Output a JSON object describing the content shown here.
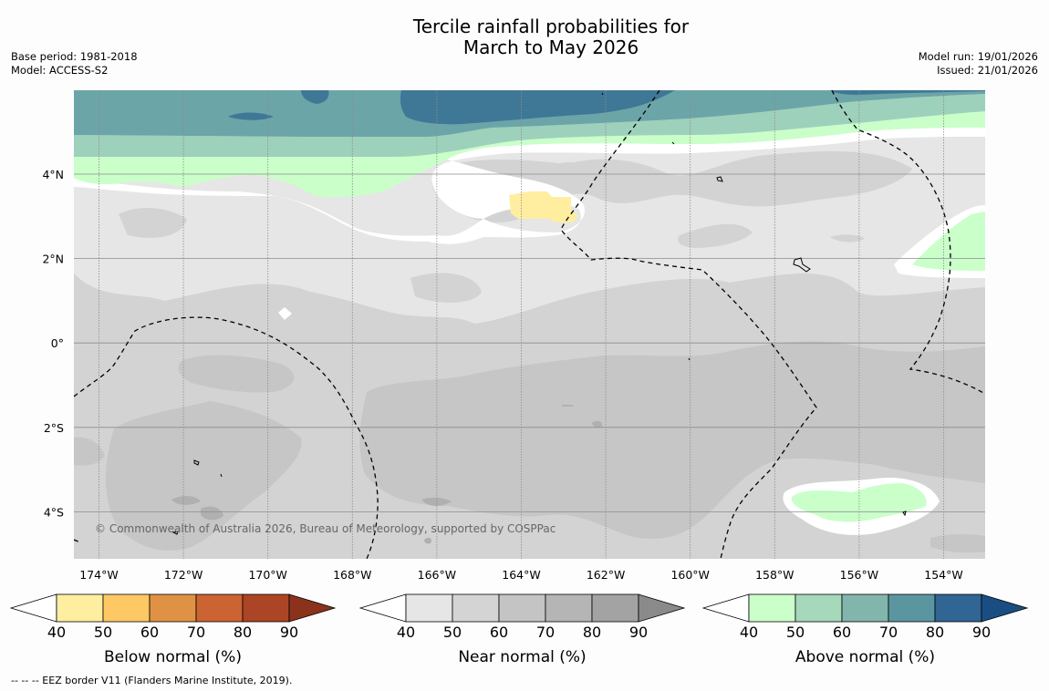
{
  "title": {
    "line1": "Tercile rainfall probabilities for",
    "line2": "March to May 2026"
  },
  "meta_left": {
    "base_period": "Base period: 1981-2018",
    "model": "Model: ACCESS-S2"
  },
  "meta_right": {
    "model_run": "Model run: 19/01/2026",
    "issued": "Issued: 21/01/2026"
  },
  "map": {
    "lon_labels": [
      "174°W",
      "172°W",
      "170°W",
      "168°W",
      "166°W",
      "164°W",
      "162°W",
      "160°W",
      "158°W",
      "156°W",
      "154°W"
    ],
    "lat_labels": [
      "4°N",
      "2°N",
      "0°",
      "2°S",
      "4°S"
    ],
    "copyright": "© Commonwealth of Australia 2026, Bureau of Meteorology, supported by COSPPac"
  },
  "colorbars": [
    {
      "label": "Below normal (%)",
      "ticks": [
        "40",
        "50",
        "60",
        "70",
        "80",
        "90"
      ],
      "colors": [
        "#ffeea0",
        "#fec865",
        "#e09244",
        "#cb6332",
        "#ab4525",
        "#8a321c"
      ]
    },
    {
      "label": "Near normal (%)",
      "ticks": [
        "40",
        "50",
        "60",
        "70",
        "80",
        "90"
      ],
      "colors": [
        "#e6e6e6",
        "#d4d4d4",
        "#c4c4c4",
        "#b5b5b5",
        "#a3a3a3",
        "#8a8a8a"
      ]
    },
    {
      "label": "Above normal (%)",
      "ticks": [
        "40",
        "50",
        "60",
        "70",
        "80",
        "90"
      ],
      "colors": [
        "#caffca",
        "#a6d8bc",
        "#82b6ad",
        "#5b95a0",
        "#306594",
        "#1a4e82"
      ]
    }
  ],
  "footer": "--  --  -- EEZ border V11 (Flanders Marine Institute, 2019)."
}
